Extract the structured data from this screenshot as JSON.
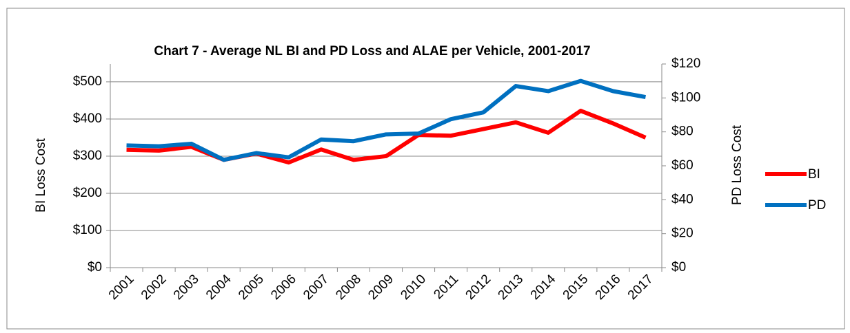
{
  "chart_data": {
    "type": "line",
    "title": "Chart 7 - Average NL BI and PD Loss and ALAE per Vehicle, 2001-2017",
    "y_label": "BI Loss Cost",
    "y2_label": "PD Loss Cost",
    "categories": [
      "2001",
      "2002",
      "2003",
      "2004",
      "2005",
      "2006",
      "2007",
      "2008",
      "2009",
      "2010",
      "2011",
      "2012",
      "2013",
      "2014",
      "2015",
      "2016",
      "2017"
    ],
    "series": [
      {
        "name": "BI",
        "color": "#ff0000",
        "values": [
          317,
          315,
          325,
          290,
          307,
          283,
          318,
          290,
          300,
          357,
          355,
          373,
          391,
          363,
          422,
          388,
          350
        ]
      },
      {
        "name": "PD",
        "color": "#0070c0",
        "axis": "y2",
        "values": [
          72,
          71.5,
          73,
          63.5,
          67.5,
          65,
          75.5,
          74.5,
          78.5,
          79,
          87.5,
          91.5,
          107,
          104,
          110,
          104,
          100.5
        ]
      }
    ],
    "ylim": [
      0,
      548
    ],
    "yticks": [
      {
        "value": 0,
        "label": "$0"
      },
      {
        "value": 100,
        "label": "$100"
      },
      {
        "value": 200,
        "label": "$200"
      },
      {
        "value": 300,
        "label": "$300"
      },
      {
        "value": 400,
        "label": "$400"
      },
      {
        "value": 500,
        "label": "$500"
      }
    ],
    "y2lim": [
      0,
      120
    ],
    "y2ticks": [
      {
        "value": 0,
        "label": "$0"
      },
      {
        "value": 20,
        "label": "$20"
      },
      {
        "value": 40,
        "label": "$40"
      },
      {
        "value": 60,
        "label": "$60"
      },
      {
        "value": 80,
        "label": "$80"
      },
      {
        "value": 100,
        "label": "$100"
      },
      {
        "value": 120,
        "label": "$120"
      }
    ],
    "grid": true,
    "legend": "right"
  }
}
